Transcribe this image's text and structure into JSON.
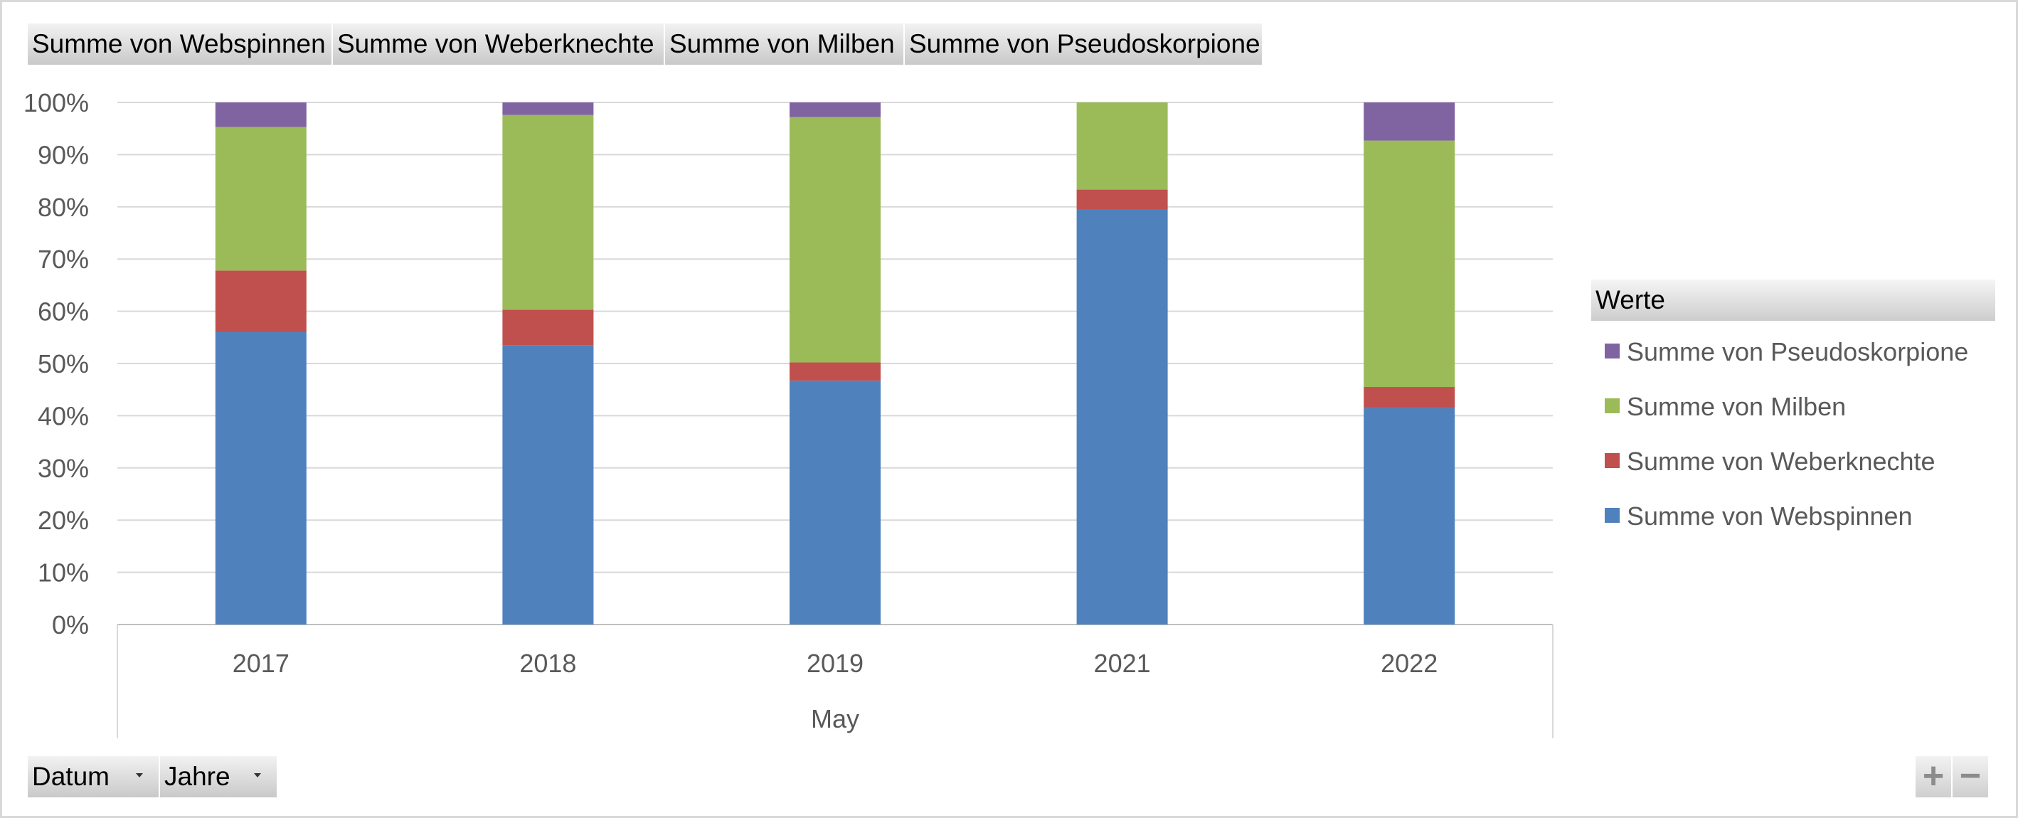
{
  "filter_fields": [
    {
      "label": "Summe von Webspinnen"
    },
    {
      "label": "Summe von Weberknechte"
    },
    {
      "label": "Summe von Milben"
    },
    {
      "label": "Summe von Pseudoskorpione"
    }
  ],
  "axis_fields": [
    {
      "label": "Datum"
    },
    {
      "label": "Jahre"
    }
  ],
  "zoom": {
    "plus": "+",
    "minus": "−"
  },
  "chart_data": {
    "type": "bar",
    "stacked": "percent",
    "categories": [
      "2017",
      "2018",
      "2019",
      "2021",
      "2022"
    ],
    "x_group_label": "May",
    "y_ticks": [
      "0%",
      "10%",
      "20%",
      "30%",
      "40%",
      "50%",
      "60%",
      "70%",
      "80%",
      "90%",
      "100%"
    ],
    "ylim": [
      0,
      100
    ],
    "grid": true,
    "legend_title": "Werte",
    "legend_position": "right",
    "series": [
      {
        "name": "Summe von Webspinnen",
        "color": "#4f81bd",
        "values": [
          56,
          53.5,
          46.7,
          79.5,
          41.5
        ]
      },
      {
        "name": "Summe von Weberknechte",
        "color": "#c0504d",
        "values": [
          11.8,
          6.8,
          3.5,
          3.8,
          4.0
        ]
      },
      {
        "name": "Summe von Milben",
        "color": "#9bbb59",
        "values": [
          27.5,
          37.3,
          47.0,
          16.7,
          47.2
        ]
      },
      {
        "name": "Summe von Pseudoskorpione",
        "color": "#8064a2",
        "values": [
          4.7,
          2.4,
          2.8,
          0,
          7.3
        ]
      }
    ]
  }
}
